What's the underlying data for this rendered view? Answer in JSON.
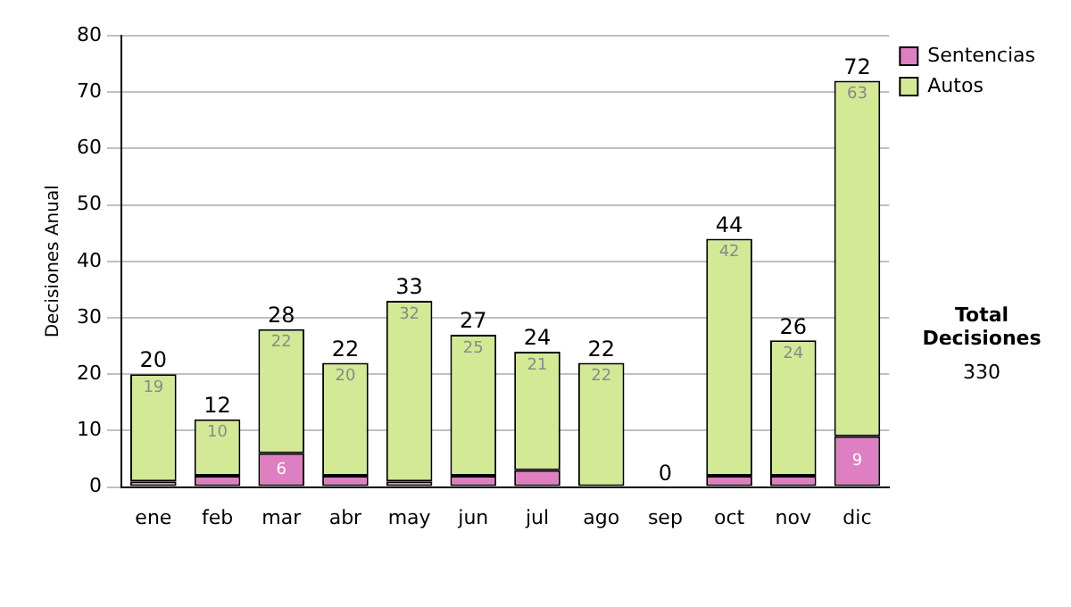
{
  "chart_data": {
    "type": "bar",
    "stacked": true,
    "ylabel": "Decisiones Anual",
    "categories": [
      "ene",
      "feb",
      "mar",
      "abr",
      "may",
      "jun",
      "jul",
      "ago",
      "sep",
      "oct",
      "nov",
      "dic"
    ],
    "series": [
      {
        "name": "Sentencias",
        "color": "#dd7fc0",
        "values": [
          1,
          2,
          6,
          2,
          1,
          2,
          3,
          0,
          0,
          2,
          2,
          9
        ],
        "value_labels": [
          null,
          null,
          "6",
          null,
          null,
          null,
          null,
          null,
          null,
          null,
          null,
          "9"
        ]
      },
      {
        "name": "Autos",
        "color": "#d3e996",
        "values": [
          19,
          10,
          22,
          20,
          32,
          25,
          21,
          22,
          0,
          42,
          24,
          63
        ],
        "value_labels": [
          "19",
          "10",
          "22",
          "20",
          "32",
          "25",
          "21",
          "22",
          null,
          "42",
          "24",
          "63"
        ]
      }
    ],
    "totals": [
      "20",
      "12",
      "28",
      "22",
      "33",
      "27",
      "24",
      "22",
      "0",
      "44",
      "26",
      "72"
    ],
    "ylim": [
      0,
      80
    ],
    "yticks": [
      0,
      10,
      20,
      30,
      40,
      50,
      60,
      70,
      80
    ],
    "grid": "y",
    "legend": "right",
    "annotations": [
      "Total Decisiones",
      "330"
    ]
  }
}
